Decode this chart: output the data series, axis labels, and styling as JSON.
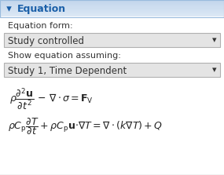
{
  "title": "Equation",
  "title_color": "#1a5fa8",
  "bg_color": "#f5f5f5",
  "panel_bg": "#ffffff",
  "label1": "Equation form:",
  "dropdown1": "Study controlled",
  "label2": "Show equation assuming:",
  "dropdown2": "Study 1, Time Dependent",
  "eq1": "$\\rho\\dfrac{\\partial^2\\mathbf{u}}{\\partial t^2}\\,-\\,\\nabla\\cdot\\sigma = \\mathbf{F}_{\\mathrm{V}}$",
  "eq2": "$\\rho C_{\\mathrm{p}}\\dfrac{\\partial T}{\\partial t}+\\rho C_{\\mathrm{p}}\\mathbf{u}{\\cdot}\\nabla T = \\nabla\\cdot(k\\nabla T)+Q$",
  "dropdown_bg": "#e4e4e4",
  "dropdown_border": "#b0b0b0",
  "text_color": "#333333",
  "label_color": "#333333",
  "eq_color": "#222222",
  "header_bg_top": "#dce8f5",
  "header_bg_bot": "#c8ddf0",
  "header_border": "#99bbdd",
  "outer_border": "#b8b8b8"
}
